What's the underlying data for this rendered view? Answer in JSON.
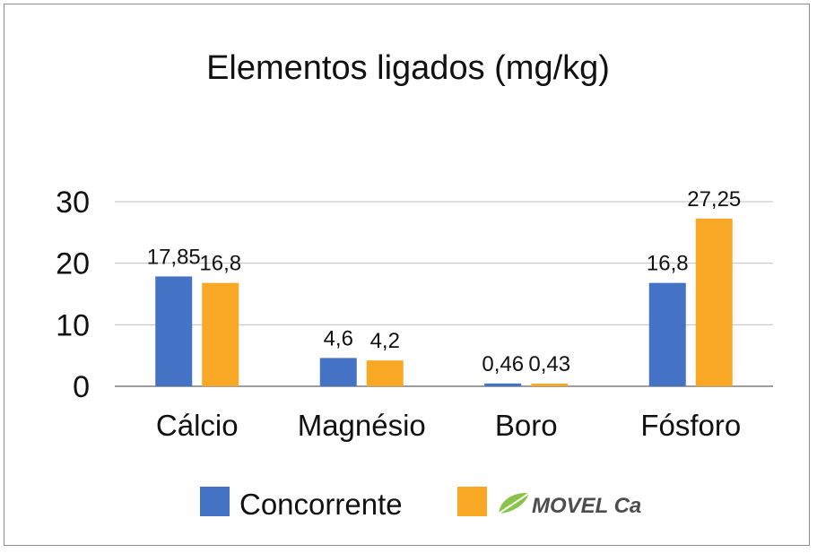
{
  "colors": {
    "concorrente": "#4472c4",
    "movel": "#f9a825",
    "grid": "#bfbfbf",
    "axis": "#7f7f7f",
    "logo_leaf": "#8bc34a",
    "logo_text": "#4d4d4d"
  },
  "logo": {
    "icon": "leaf-icon"
  },
  "chart_data": {
    "type": "bar",
    "title": "Elementos ligados (mg/kg)",
    "categories": [
      "Cálcio",
      "Magnésio",
      "Boro",
      "Fósforo"
    ],
    "series": [
      {
        "name": "Concorrente",
        "values": [
          17.85,
          4.6,
          0.46,
          16.8
        ],
        "labels": [
          "17,85",
          "4,6",
          "0,46",
          "16,8"
        ]
      },
      {
        "name": "MOVEL Ca",
        "values": [
          16.8,
          4.2,
          0.43,
          27.25
        ],
        "labels": [
          "16,8",
          "4,2",
          "0,43",
          "27,25"
        ]
      }
    ],
    "yticks": [
      0,
      10,
      20,
      30
    ],
    "ylim": [
      0,
      30
    ],
    "grid": true,
    "legend_position": "bottom"
  }
}
